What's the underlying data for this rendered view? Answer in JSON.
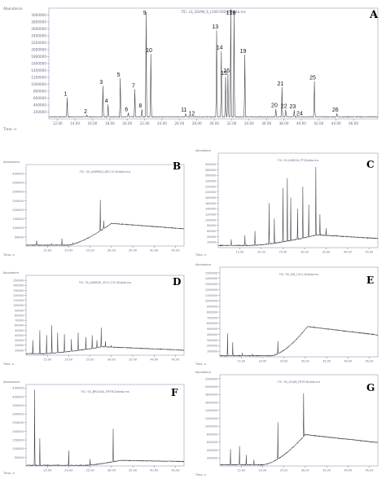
{
  "figure": {
    "caption_hidden": ""
  },
  "chart_data": [
    {
      "panel": "A",
      "type": "line",
      "header": "TIC: LS_GOAN_S_(100-500).D\\data.ms",
      "ylabel_text": "Abundance",
      "xlabel_text": "Time-->",
      "xlim": [
        11.0,
        48.8
      ],
      "ylim": [
        0,
        3200000
      ],
      "xticks": [
        12.0,
        14.0,
        16.0,
        18.0,
        20.0,
        22.0,
        24.0,
        26.0,
        28.0,
        30.0,
        32.0,
        34.0,
        36.0,
        38.0,
        40.0,
        42.0,
        44.0,
        46.0
      ],
      "xtick_labels": [
        "12.00",
        "14.00",
        "16.00",
        "18.00",
        "20.00",
        "22.00",
        "24.00",
        "26.00",
        "28.00",
        "30.00",
        "32.00",
        "34.00",
        "36.00",
        "38.00",
        "40.00",
        "42.00",
        "44.00",
        "46.00"
      ],
      "yticks": [
        200000,
        400000,
        600000,
        800000,
        1000000,
        1200000,
        1400000,
        1600000,
        1800000,
        2000000,
        2200000,
        2400000,
        2600000,
        2800000,
        3000000
      ],
      "ytick_labels": [
        "200000",
        "400000",
        "600000",
        "800000",
        "1000000",
        "1200000",
        "1400000",
        "1600000",
        "1800000",
        "2000000",
        "2200000",
        "2400000",
        "2600000",
        "2800000",
        "3000000"
      ],
      "baseline": 60000,
      "peaks": [
        {
          "label": "1",
          "x": 13.1,
          "y": 620000
        },
        {
          "label": "2",
          "x": 15.4,
          "y": 120000
        },
        {
          "label": "3",
          "x": 17.2,
          "y": 960000
        },
        {
          "label": "4",
          "x": 17.8,
          "y": 420000
        },
        {
          "label": "5",
          "x": 19.2,
          "y": 1180000
        },
        {
          "label": "6",
          "x": 20.1,
          "y": 180000
        },
        {
          "label": "7",
          "x": 20.9,
          "y": 860000
        },
        {
          "label": "8",
          "x": 21.7,
          "y": 280000
        },
        {
          "label": "9",
          "x": 22.2,
          "y": 3080000
        },
        {
          "label": "10",
          "x": 22.7,
          "y": 1880000
        },
        {
          "label": "11",
          "x": 26.7,
          "y": 160000
        },
        {
          "label": "12",
          "x": 27.6,
          "y": 60000
        },
        {
          "label": "13",
          "x": 30.3,
          "y": 2560000
        },
        {
          "label": "14",
          "x": 30.8,
          "y": 1960000
        },
        {
          "label": "15",
          "x": 31.3,
          "y": 1220000
        },
        {
          "label": "16",
          "x": 31.6,
          "y": 1300000
        },
        {
          "label": "17",
          "x": 31.9,
          "y": 3180000
        },
        {
          "label": "18",
          "x": 32.3,
          "y": 3120000
        },
        {
          "label": "19",
          "x": 33.5,
          "y": 1860000
        },
        {
          "label": "20",
          "x": 37.1,
          "y": 290000
        },
        {
          "label": "21",
          "x": 37.8,
          "y": 920000
        },
        {
          "label": "22",
          "x": 38.2,
          "y": 270000
        },
        {
          "label": "23",
          "x": 39.2,
          "y": 260000
        },
        {
          "label": "24",
          "x": 40.0,
          "y": 60000
        },
        {
          "label": "25",
          "x": 41.5,
          "y": 1090000
        },
        {
          "label": "26",
          "x": 44.1,
          "y": 160000
        }
      ],
      "letter": "A"
    },
    {
      "panel": "B",
      "type": "line",
      "header": "TIC: SS_KARBIGI_DEC10.D\\data.ms",
      "ylabel_text": "Abundance",
      "xlabel_text": "Time-->",
      "xlim": [
        10.0,
        47.0
      ],
      "ylim": [
        0,
        450000
      ],
      "xticks": [
        15.0,
        20.0,
        25.0,
        30.0,
        35.0,
        40.0,
        45.0
      ],
      "xtick_labels": [
        "15.00",
        "20.00",
        "25.00",
        "30.00",
        "35.00",
        "40.00",
        "45.00"
      ],
      "yticks": [
        50000,
        100000,
        150000,
        200000,
        250000,
        300000,
        350000,
        400000
      ],
      "ytick_labels": [
        "50000",
        "100000",
        "150000",
        "200000",
        "250000",
        "300000",
        "350000",
        "400000"
      ],
      "baseline": 5000,
      "hump": {
        "start": 20.0,
        "peak_x": 30.0,
        "level": 120000,
        "end_level": 90000
      },
      "peaks": [
        {
          "x": 12.5,
          "y": 30000
        },
        {
          "x": 16.0,
          "y": 15000
        },
        {
          "x": 18.4,
          "y": 42000
        },
        {
          "x": 21.0,
          "y": 18000
        },
        {
          "x": 25.8,
          "y": 60000
        },
        {
          "x": 27.4,
          "y": 255000
        },
        {
          "x": 28.2,
          "y": 140000
        },
        {
          "x": 29.0,
          "y": 95000
        },
        {
          "x": 33.0,
          "y": 30000
        }
      ],
      "letter": "B"
    },
    {
      "panel": "C",
      "type": "line",
      "header": "TIC: SS_KARIGA_PT.D\\data.ms",
      "ylabel_text": "Abundance",
      "xlabel_text": "Time-->",
      "xlim": [
        10.0,
        47.0
      ],
      "ylim": [
        0,
        340000
      ],
      "xticks": [
        15.0,
        20.0,
        25.0,
        30.0,
        35.0,
        40.0,
        45.0
      ],
      "xtick_labels": [
        "15.00",
        "20.00",
        "25.00",
        "30.00",
        "35.00",
        "40.00",
        "45.00"
      ],
      "yticks": [
        20000,
        40000,
        60000,
        80000,
        100000,
        120000,
        140000,
        160000,
        180000,
        200000,
        220000,
        240000,
        260000,
        280000,
        300000
      ],
      "ytick_labels": [
        "20000",
        "40000",
        "60000",
        "80000",
        "100000",
        "120000",
        "140000",
        "160000",
        "180000",
        "200000",
        "220000",
        "240000",
        "260000",
        "280000",
        "300000"
      ],
      "baseline": 8000,
      "hump": {
        "start": 18.0,
        "peak_x": 33.0,
        "level": 38000,
        "end_level": 25000
      },
      "peaks": [
        {
          "x": 13.0,
          "y": 30000
        },
        {
          "x": 16.2,
          "y": 45000
        },
        {
          "x": 18.5,
          "y": 60000
        },
        {
          "x": 21.8,
          "y": 160000
        },
        {
          "x": 23.0,
          "y": 105000
        },
        {
          "x": 25.0,
          "y": 215000
        },
        {
          "x": 26.0,
          "y": 250000
        },
        {
          "x": 26.8,
          "y": 180000
        },
        {
          "x": 28.4,
          "y": 140000
        },
        {
          "x": 29.6,
          "y": 220000
        },
        {
          "x": 31.0,
          "y": 155000
        },
        {
          "x": 32.6,
          "y": 290000
        },
        {
          "x": 33.6,
          "y": 120000
        },
        {
          "x": 35.0,
          "y": 70000
        },
        {
          "x": 37.2,
          "y": 45000
        }
      ],
      "letter": "C"
    },
    {
      "panel": "D",
      "type": "line",
      "header": "TIC: SS_KARBIGI_3511_F20.D\\data.ms",
      "ylabel_text": "Abundance",
      "xlabel_text": "Time-->",
      "xlim": [
        10.0,
        47.0
      ],
      "ylim": [
        0,
        160000
      ],
      "xticks": [
        15.0,
        20.0,
        25.0,
        30.0,
        35.0,
        40.0,
        45.0
      ],
      "xtick_labels": [
        "15.00",
        "20.00",
        "25.00",
        "30.00",
        "35.00",
        "40.00",
        "45.00"
      ],
      "yticks": [
        10000,
        20000,
        30000,
        40000,
        50000,
        60000,
        70000,
        80000,
        90000,
        100000,
        110000,
        120000,
        130000,
        140000,
        150000
      ],
      "ytick_labels": [
        "10000",
        "20000",
        "30000",
        "40000",
        "50000",
        "60000",
        "70000",
        "80000",
        "90000",
        "100000",
        "110000",
        "120000",
        "130000",
        "140000",
        "150000"
      ],
      "baseline": 3000,
      "hump": {
        "start": 14.0,
        "peak_x": 28.0,
        "level": 14000,
        "end_level": 7000
      },
      "peaks": [
        {
          "x": 11.6,
          "y": 30000
        },
        {
          "x": 13.2,
          "y": 50000
        },
        {
          "x": 14.8,
          "y": 40000
        },
        {
          "x": 16.0,
          "y": 60000
        },
        {
          "x": 17.4,
          "y": 45000
        },
        {
          "x": 19.0,
          "y": 42000
        },
        {
          "x": 20.6,
          "y": 32000
        },
        {
          "x": 22.2,
          "y": 45000
        },
        {
          "x": 24.0,
          "y": 36000
        },
        {
          "x": 25.5,
          "y": 40000
        },
        {
          "x": 26.6,
          "y": 30000
        },
        {
          "x": 27.6,
          "y": 55000
        },
        {
          "x": 28.6,
          "y": 28000
        },
        {
          "x": 30.0,
          "y": 20000
        }
      ],
      "letter": "D"
    },
    {
      "panel": "E",
      "type": "line",
      "header": "TIC: SS_SID_1411.D\\data.ms",
      "ylabel_text": "Abundance",
      "xlabel_text": "Time-->",
      "xlim": [
        10.0,
        47.0
      ],
      "ylim": [
        0,
        1600000
      ],
      "xticks": [
        15.0,
        20.0,
        25.0,
        30.0,
        35.0,
        40.0,
        45.0
      ],
      "xtick_labels": [
        "15.00",
        "20.00",
        "25.00",
        "30.00",
        "35.00",
        "40.00",
        "45.00"
      ],
      "yticks": [
        100000,
        200000,
        300000,
        400000,
        500000,
        600000,
        700000,
        800000,
        900000,
        1000000,
        1100000,
        1200000,
        1300000,
        1400000,
        1500000
      ],
      "ytick_labels": [
        "100000",
        "200000",
        "300000",
        "400000",
        "500000",
        "600000",
        "700000",
        "800000",
        "900000",
        "1000000",
        "1100000",
        "1200000",
        "1300000",
        "1400000",
        "1500000"
      ],
      "baseline": 20000,
      "ramp": {
        "start": 22.0,
        "top_x": 30.5,
        "top_level": 520000,
        "end_level": 370000
      },
      "peaks": [
        {
          "x": 11.8,
          "y": 420000
        },
        {
          "x": 13.0,
          "y": 260000
        },
        {
          "x": 15.3,
          "y": 70000
        },
        {
          "x": 17.6,
          "y": 50000
        },
        {
          "x": 23.6,
          "y": 280000
        }
      ],
      "letter": "E"
    },
    {
      "panel": "F",
      "type": "line",
      "header": "TIC: SS_BRLGSA_FRTR.D\\data.ms",
      "ylabel_text": "Abundance",
      "xlabel_text": "Time-->",
      "xlim": [
        10.0,
        47.0
      ],
      "ylim": [
        0,
        470000
      ],
      "xticks": [
        15.0,
        20.0,
        25.0,
        30.0,
        35.0,
        40.0,
        45.0
      ],
      "xtick_labels": [
        "15.00",
        "20.00",
        "25.00",
        "30.00",
        "35.00",
        "40.00",
        "45.00"
      ],
      "yticks": [
        50000,
        100000,
        150000,
        200000,
        250000,
        300000,
        350000,
        400000,
        450000
      ],
      "ytick_labels": [
        "50000",
        "100000",
        "150000",
        "200000",
        "250000",
        "300000",
        "350000",
        "400000",
        "450000"
      ],
      "baseline": 4000,
      "hump": {
        "start": 24.0,
        "peak_x": 32.0,
        "level": 28000,
        "end_level": 22000
      },
      "peaks": [
        {
          "x": 12.0,
          "y": 440000
        },
        {
          "x": 13.2,
          "y": 160000
        },
        {
          "x": 20.0,
          "y": 90000
        },
        {
          "x": 25.0,
          "y": 40000
        },
        {
          "x": 30.4,
          "y": 215000
        }
      ],
      "letter": "F"
    },
    {
      "panel": "G",
      "type": "line",
      "header": "TIC: SS_GOAN_FRTR.D\\data.ms",
      "ylabel_text": "Abundance",
      "xlabel_text": "Time-->",
      "xlim": [
        10.0,
        47.0
      ],
      "ylim": [
        0,
        2300000
      ],
      "xticks": [
        15.0,
        20.0,
        25.0,
        30.0,
        35.0,
        40.0,
        45.0
      ],
      "xtick_labels": [
        "15.00",
        "20.00",
        "25.00",
        "30.00",
        "35.00",
        "40.00",
        "45.00"
      ],
      "yticks": [
        200000,
        400000,
        600000,
        800000,
        1000000,
        1200000,
        1400000,
        1600000,
        1800000,
        2000000,
        2200000
      ],
      "ytick_labels": [
        "200000",
        "400000",
        "600000",
        "800000",
        "1000000",
        "1200000",
        "1400000",
        "1600000",
        "1800000",
        "2000000",
        "2200000"
      ],
      "baseline": 30000,
      "ramp": {
        "start": 20.0,
        "top_x": 30.0,
        "top_level": 760000,
        "end_level": 560000
      },
      "peaks": [
        {
          "x": 12.5,
          "y": 420000
        },
        {
          "x": 14.6,
          "y": 500000
        },
        {
          "x": 16.2,
          "y": 280000
        },
        {
          "x": 18.0,
          "y": 160000
        },
        {
          "x": 23.6,
          "y": 1100000
        },
        {
          "x": 29.6,
          "y": 1830000
        }
      ],
      "letter": "G"
    }
  ]
}
